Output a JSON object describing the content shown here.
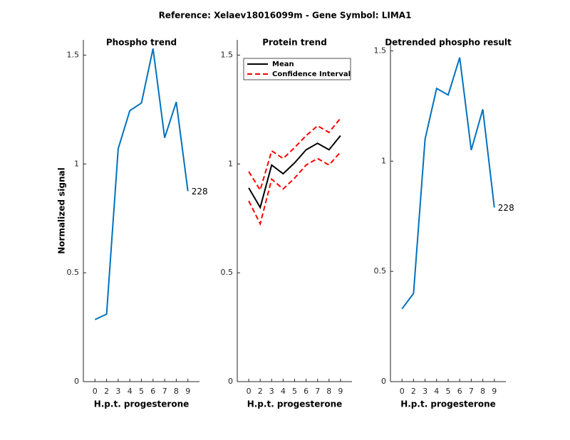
{
  "title": "Reference:  Xelaev18016099m - Gene Symbol:  LIMA1",
  "chart_data": [
    {
      "type": "line",
      "title": "Phospho trend",
      "xlabel": "H.p.t. progesterone",
      "ylabel": "Normalized signal",
      "categories": [
        "0",
        "2",
        "3",
        "4",
        "5",
        "6",
        "7",
        "8",
        "9"
      ],
      "series": [
        {
          "color": "#0072bd",
          "values": [
            0.285,
            0.31,
            1.07,
            1.245,
            1.28,
            1.53,
            1.12,
            1.285,
            0.875
          ]
        }
      ],
      "annotation": "228",
      "ylim": [
        0,
        1.57
      ],
      "yticks": [
        0,
        0.5,
        1,
        1.5
      ]
    },
    {
      "type": "band-line",
      "title": "Protein trend",
      "xlabel": "H.p.t. progesterone",
      "categories": [
        "0",
        "2",
        "3",
        "4",
        "5",
        "6",
        "7",
        "8",
        "9"
      ],
      "series": [
        {
          "name": "Mean",
          "color": "#000000",
          "values": [
            0.89,
            0.8,
            0.995,
            0.955,
            1.005,
            1.065,
            1.095,
            1.065,
            1.13
          ]
        },
        {
          "name": "Confidence Interval",
          "color": "#ff0000",
          "dashed": true,
          "upper": [
            0.965,
            0.88,
            1.06,
            1.025,
            1.075,
            1.13,
            1.175,
            1.145,
            1.21
          ],
          "lower": [
            0.83,
            0.725,
            0.93,
            0.885,
            0.935,
            0.995,
            1.025,
            0.995,
            1.055
          ]
        }
      ],
      "legend": "upper left",
      "ylim": [
        0,
        1.57
      ],
      "yticks": [
        0,
        0.5,
        1,
        1.5
      ]
    },
    {
      "type": "line",
      "title": "Detrended phospho result",
      "xlabel": "H.p.t. progesterone",
      "categories": [
        "0",
        "2",
        "3",
        "4",
        "5",
        "6",
        "7",
        "8",
        "9"
      ],
      "series": [
        {
          "color": "#0072bd",
          "values": [
            0.33,
            0.4,
            1.1,
            1.33,
            1.3,
            1.47,
            1.05,
            1.235,
            0.79
          ]
        }
      ],
      "annotation": "228",
      "ylim": [
        0,
        1.55
      ],
      "yticks": [
        0,
        0.5,
        1,
        1.5
      ]
    }
  ]
}
